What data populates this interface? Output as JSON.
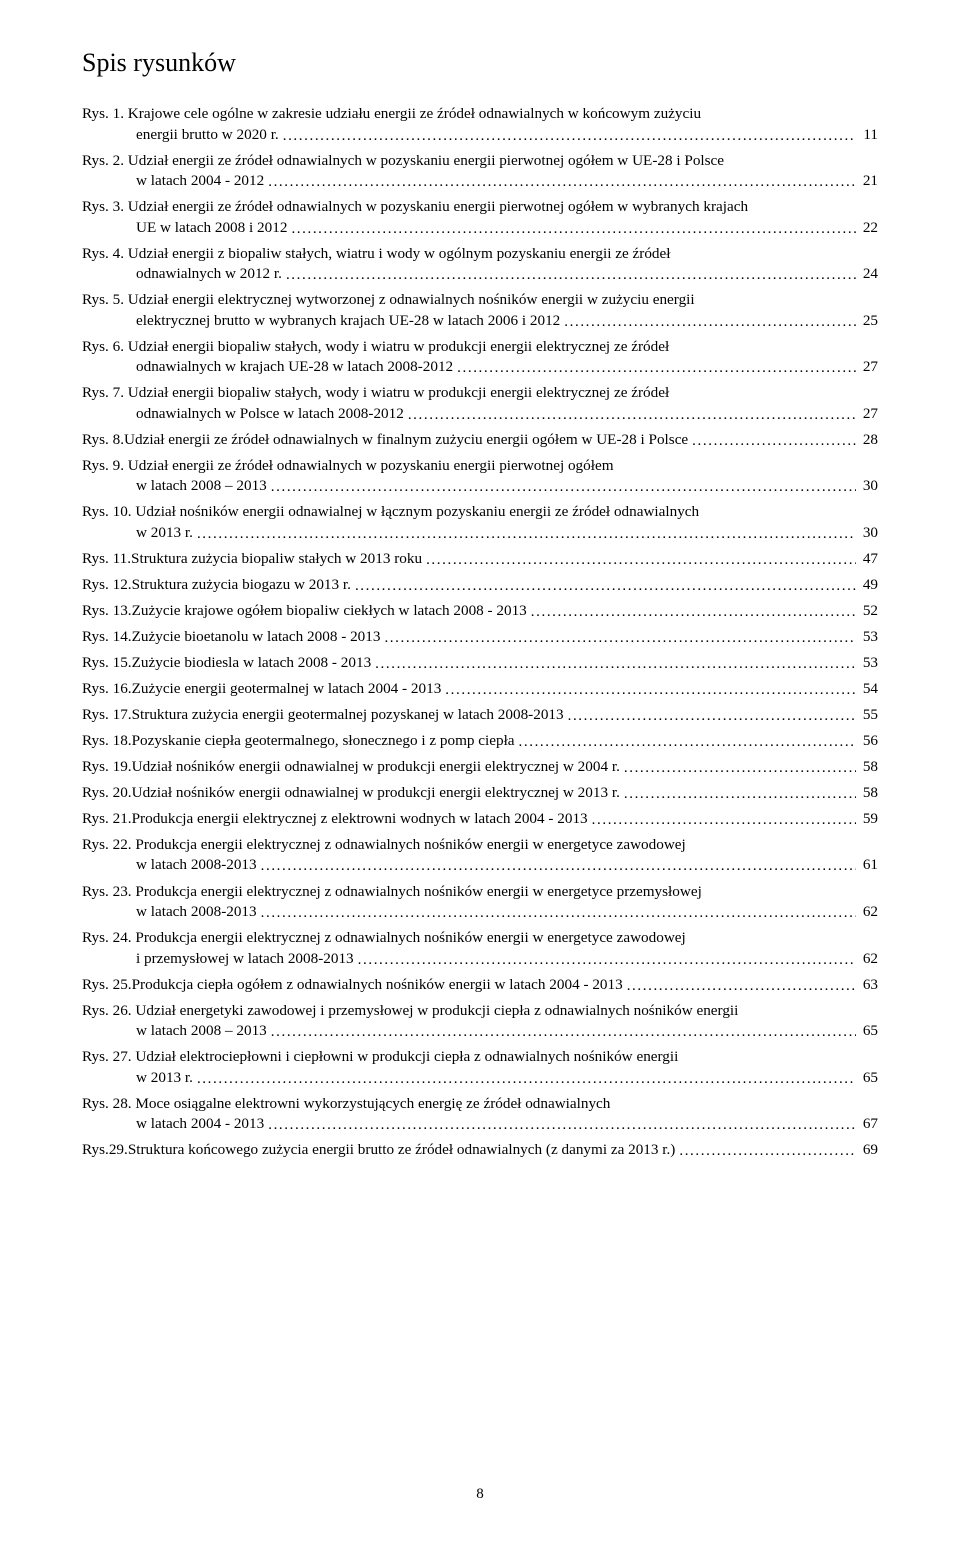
{
  "title": "Spis rysunków",
  "leader_dots": ".........................................................................................................................................................................................................",
  "page_number": "8",
  "entries": [
    {
      "label": "Rys. 1.",
      "line1": "Krajowe cele ogólne w zakresie udziału energii ze źródeł odnawialnych w końcowym zużyciu",
      "line2": "energii brutto w 2020 r.",
      "page": "11"
    },
    {
      "label": "Rys. 2.",
      "line1": "Udział energii ze źródeł odnawialnych w pozyskaniu energii pierwotnej ogółem w UE-28 i Polsce",
      "line2": "w latach 2004 - 2012",
      "page": "21"
    },
    {
      "label": "Rys. 3.",
      "line1": "Udział energii ze źródeł odnawialnych w pozyskaniu energii pierwotnej ogółem w wybranych krajach",
      "line2": "UE w latach 2008 i 2012",
      "page": "22"
    },
    {
      "label": "Rys. 4.",
      "line1": "Udział energii z biopaliw stałych, wiatru i wody w ogólnym pozyskaniu energii ze źródeł",
      "line2": "odnawialnych w 2012 r. ",
      "page": "24"
    },
    {
      "label": "Rys. 5.",
      "line1": "Udział energii elektrycznej wytworzonej z odnawialnych nośników energii w zużyciu energii",
      "line2": "elektrycznej brutto w wybranych krajach UE-28 w latach 2006 i 2012",
      "page": "25"
    },
    {
      "label": "Rys. 6.",
      "line1": "Udział energii biopaliw stałych, wody i wiatru w produkcji energii elektrycznej ze źródeł",
      "line2": "odnawialnych w krajach UE-28 w latach 2008-2012",
      "page": "27"
    },
    {
      "label": "Rys. 7.",
      "line1": "Udział energii biopaliw stałych, wody i wiatru w produkcji energii elektrycznej ze źródeł",
      "line2": "odnawialnych w Polsce w latach 2008-2012",
      "page": "27"
    },
    {
      "label": "Rys. 8.",
      "single": "Udział energii ze źródeł odnawialnych w finalnym zużyciu energii ogółem  w UE-28 i Polsce",
      "page": "28"
    },
    {
      "label": "Rys. 9.",
      "line1": "Udział energii ze źródeł odnawialnych w pozyskaniu energii pierwotnej ogółem",
      "line2": "w latach 2008 – 2013",
      "page": "30"
    },
    {
      "label": "Rys. 10.",
      "line1": "Udział nośników energii odnawialnej w łącznym pozyskaniu energii ze źródeł odnawialnych",
      "line2": "w 2013 r. ",
      "page": "30"
    },
    {
      "label": "Rys. 11.",
      "single": "Struktura zużycia biopaliw stałych w 2013 roku",
      "page": "47"
    },
    {
      "label": "Rys. 12.",
      "single": "Struktura zużycia biogazu w 2013 r. ",
      "page": "49"
    },
    {
      "label": "Rys. 13.",
      "single": "Zużycie krajowe ogółem biopaliw ciekłych w latach 2008 - 2013",
      "page": "52"
    },
    {
      "label": "Rys. 14.",
      "single": "Zużycie bioetanolu w latach 2008 - 2013",
      "page": "53"
    },
    {
      "label": "Rys. 15.",
      "single": "Zużycie biodiesla w latach 2008 - 2013",
      "page": "53"
    },
    {
      "label": "Rys. 16.",
      "single": "Zużycie energii geotermalnej w latach 2004 - 2013",
      "page": "54"
    },
    {
      "label": "Rys. 17.",
      "single": "Struktura zużycia energii geotermalnej pozyskanej w latach 2008-2013",
      "page": "55"
    },
    {
      "label": "Rys. 18.",
      "single": "Pozyskanie ciepła geotermalnego, słonecznego i z pomp ciepła",
      "page": "56"
    },
    {
      "label": "Rys. 19.",
      "single": "Udział nośników energii odnawialnej w produkcji energii elektrycznej w 2004 r. ",
      "page": "58"
    },
    {
      "label": "Rys. 20.",
      "single": "Udział nośników energii odnawialnej w produkcji energii elektrycznej w 2013 r. ",
      "page": "58"
    },
    {
      "label": "Rys. 21.",
      "single": "Produkcja energii elektrycznej z elektrowni wodnych w latach 2004 - 2013",
      "page": "59"
    },
    {
      "label": "Rys. 22.",
      "line1": "Produkcja energii elektrycznej z odnawialnych nośników energii w energetyce zawodowej",
      "line2": "w latach 2008-2013",
      "page": "61"
    },
    {
      "label": "Rys. 23.",
      "line1": "Produkcja energii elektrycznej z odnawialnych nośników energii w energetyce przemysłowej",
      "line2": "w latach 2008-2013",
      "page": "62"
    },
    {
      "label": "Rys. 24.",
      "line1": "Produkcja energii elektrycznej z odnawialnych nośników energii w energetyce zawodowej",
      "line2": "i przemysłowej w latach 2008-2013",
      "page": "62"
    },
    {
      "label": "Rys. 25.",
      "single": "Produkcja ciepła ogółem z odnawialnych nośników energii w latach 2004 - 2013",
      "page": "63"
    },
    {
      "label": "Rys. 26.",
      "line1": "Udział energetyki zawodowej i przemysłowej w produkcji ciepła z odnawialnych nośników energii",
      "line2": "w latach 2008 – 2013",
      "page": "65"
    },
    {
      "label": "Rys. 27.",
      "line1": "Udział elektrociepłowni i ciepłowni w produkcji ciepła z odnawialnych nośników energii",
      "line2": "w 2013 r. ",
      "page": "65"
    },
    {
      "label": "Rys. 28.",
      "line1": "Moce osiągalne elektrowni wykorzystujących energię ze źródeł odnawialnych",
      "line2": "w latach 2004 - 2013",
      "page": "67"
    },
    {
      "label": "Rys.29.",
      "single": "Struktura końcowego zużycia energii brutto ze źródeł odnawialnych (z danymi za 2013 r.)",
      "page": "69"
    }
  ]
}
